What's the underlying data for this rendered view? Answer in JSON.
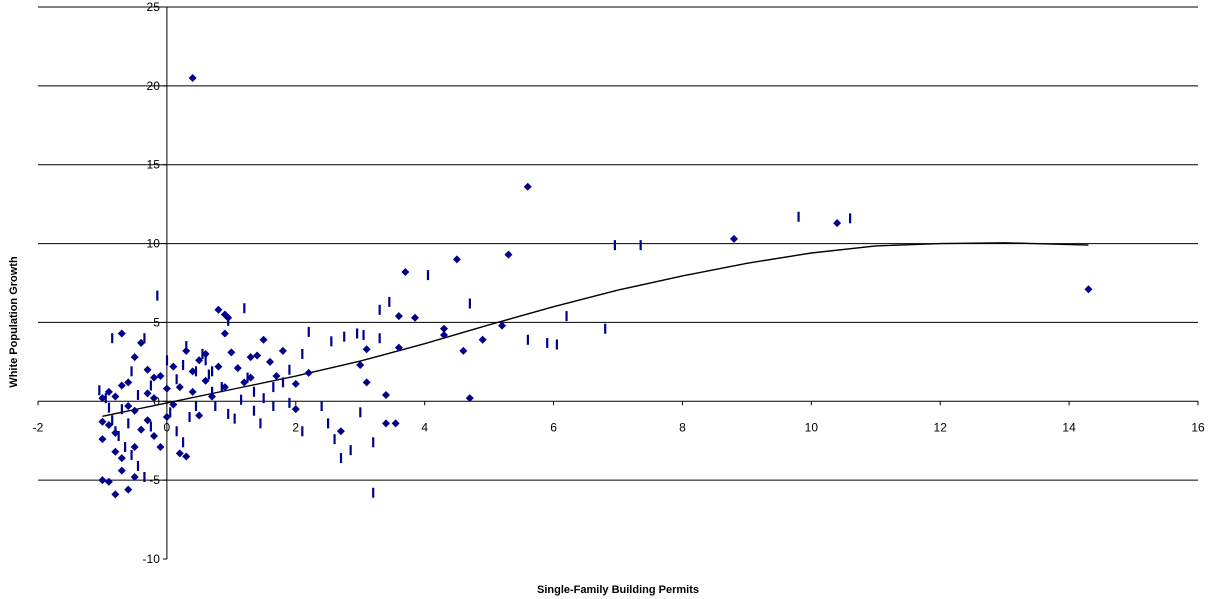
{
  "chart_data": {
    "type": "scatter",
    "title": "",
    "xlabel": "Single-Family Building Permits",
    "ylabel": "White Population Growth",
    "xlim": [
      -2,
      16
    ],
    "ylim": [
      -10,
      25
    ],
    "x_ticks": [
      -2,
      0,
      2,
      4,
      6,
      8,
      10,
      12,
      14,
      16
    ],
    "x_tick_labels": [
      "-2",
      "0",
      "2",
      "4",
      "6",
      "8",
      "10",
      "12",
      "14",
      "16"
    ],
    "y_ticks": [
      -10,
      -5,
      0,
      5,
      10,
      15,
      20,
      25
    ],
    "y_tick_labels": [
      "-10",
      "-5",
      "0",
      "5",
      "10",
      "15",
      "20",
      "25"
    ],
    "grid": {
      "horizontal": true,
      "vertical": false
    },
    "legend": "none",
    "colors": {
      "diamond_series": "#00008b",
      "dash_series": "#00008b",
      "trendline": "#000000",
      "gridlines": "#000000"
    },
    "series": [
      {
        "marker": "diamond",
        "points": [
          [
            0.4,
            20.5
          ],
          [
            5.6,
            13.6
          ],
          [
            10.4,
            11.3
          ],
          [
            8.8,
            10.3
          ],
          [
            14.3,
            7.1
          ],
          [
            4.5,
            9.0
          ],
          [
            5.3,
            9.3
          ],
          [
            3.7,
            8.2
          ],
          [
            3.6,
            5.4
          ],
          [
            3.85,
            5.3
          ],
          [
            0.8,
            5.8
          ],
          [
            0.9,
            5.5
          ],
          [
            0.95,
            5.3
          ],
          [
            4.3,
            4.6
          ],
          [
            4.3,
            4.2
          ],
          [
            5.2,
            4.8
          ],
          [
            4.9,
            3.9
          ],
          [
            4.6,
            3.2
          ],
          [
            3.6,
            3.4
          ],
          [
            3.1,
            3.3
          ],
          [
            3.0,
            2.3
          ],
          [
            3.1,
            1.2
          ],
          [
            3.4,
            0.4
          ],
          [
            3.4,
            -1.4
          ],
          [
            3.55,
            -1.4
          ],
          [
            4.7,
            0.2
          ],
          [
            2.0,
            -0.5
          ],
          [
            2.2,
            1.8
          ],
          [
            2.7,
            -1.9
          ],
          [
            1.8,
            3.2
          ],
          [
            1.6,
            2.5
          ],
          [
            1.5,
            3.9
          ],
          [
            1.4,
            2.9
          ],
          [
            1.2,
            1.2
          ],
          [
            1.0,
            3.1
          ],
          [
            0.9,
            4.3
          ],
          [
            0.6,
            3.0
          ],
          [
            0.5,
            2.6
          ],
          [
            0.4,
            1.9
          ],
          [
            0.3,
            3.2
          ],
          [
            0.1,
            2.2
          ],
          [
            0.0,
            0.8
          ],
          [
            -0.2,
            1.5
          ],
          [
            -0.3,
            0.5
          ],
          [
            -0.5,
            -0.6
          ],
          [
            -0.7,
            4.3
          ],
          [
            -0.5,
            2.8
          ],
          [
            -0.4,
            3.7
          ],
          [
            -0.6,
            1.2
          ],
          [
            -0.8,
            0.3
          ],
          [
            -0.9,
            -1.5
          ],
          [
            -1.0,
            -2.4
          ],
          [
            -0.8,
            -3.2
          ],
          [
            -0.7,
            -4.4
          ],
          [
            -0.9,
            -5.1
          ],
          [
            -0.6,
            -5.6
          ],
          [
            -0.8,
            -5.9
          ],
          [
            -1.0,
            -5.0
          ],
          [
            -0.5,
            -2.9
          ],
          [
            -0.3,
            -1.2
          ],
          [
            -0.1,
            -2.9
          ],
          [
            0.2,
            -3.3
          ],
          [
            0.3,
            -3.5
          ],
          [
            -0.2,
            0.2
          ],
          [
            0.1,
            -0.2
          ],
          [
            0.7,
            0.3
          ],
          [
            0.5,
            -0.9
          ],
          [
            1.1,
            2.1
          ],
          [
            1.3,
            1.5
          ],
          [
            1.7,
            1.6
          ],
          [
            2.0,
            1.1
          ],
          [
            0.6,
            1.3
          ],
          [
            0.8,
            2.2
          ],
          [
            0.2,
            0.9
          ],
          [
            -0.3,
            2.0
          ],
          [
            -0.7,
            1.0
          ],
          [
            -0.9,
            0.6
          ],
          [
            -1.0,
            0.2
          ],
          [
            -0.6,
            -0.3
          ],
          [
            -0.4,
            -1.8
          ],
          [
            -0.8,
            -2.0
          ],
          [
            -1.0,
            -1.3
          ],
          [
            -0.7,
            -3.6
          ],
          [
            -0.5,
            -4.8
          ],
          [
            0.0,
            -1.0
          ],
          [
            -0.2,
            -2.2
          ],
          [
            -0.1,
            1.6
          ],
          [
            0.4,
            0.6
          ],
          [
            1.3,
            2.8
          ],
          [
            0.9,
            0.9
          ]
        ]
      },
      {
        "marker": "dash",
        "points": [
          [
            9.8,
            11.7
          ],
          [
            10.6,
            11.6
          ],
          [
            6.95,
            9.9
          ],
          [
            7.35,
            9.9
          ],
          [
            6.2,
            5.4
          ],
          [
            6.8,
            4.6
          ],
          [
            5.6,
            3.9
          ],
          [
            5.9,
            3.7
          ],
          [
            6.05,
            3.6
          ],
          [
            4.05,
            8.0
          ],
          [
            4.7,
            6.2
          ],
          [
            3.45,
            6.3
          ],
          [
            3.3,
            5.8
          ],
          [
            3.3,
            4.0
          ],
          [
            3.05,
            4.2
          ],
          [
            2.95,
            4.3
          ],
          [
            2.75,
            4.1
          ],
          [
            2.55,
            3.8
          ],
          [
            2.2,
            4.4
          ],
          [
            2.1,
            3.0
          ],
          [
            1.9,
            2.0
          ],
          [
            1.8,
            1.2
          ],
          [
            1.65,
            0.9
          ],
          [
            1.5,
            0.2
          ],
          [
            1.35,
            0.6
          ],
          [
            1.25,
            1.5
          ],
          [
            1.2,
            5.9
          ],
          [
            0.95,
            5.1
          ],
          [
            0.3,
            3.5
          ],
          [
            0.55,
            3.0
          ],
          [
            0.25,
            2.3
          ],
          [
            0.45,
            1.9
          ],
          [
            0.65,
            1.7
          ],
          [
            0.7,
            0.6
          ],
          [
            0.95,
            -0.8
          ],
          [
            1.05,
            -1.1
          ],
          [
            1.35,
            -0.6
          ],
          [
            1.65,
            -0.3
          ],
          [
            1.9,
            -0.1
          ],
          [
            2.4,
            -0.3
          ],
          [
            2.5,
            -1.4
          ],
          [
            2.6,
            -2.4
          ],
          [
            2.7,
            -3.6
          ],
          [
            2.85,
            -3.1
          ],
          [
            3.0,
            -0.7
          ],
          [
            3.2,
            -2.6
          ],
          [
            3.2,
            -5.8
          ],
          [
            -0.15,
            6.7
          ],
          [
            -0.35,
            4.0
          ],
          [
            -0.85,
            4.0
          ],
          [
            -1.05,
            0.7
          ],
          [
            -0.95,
            0.2
          ],
          [
            -0.9,
            -0.4
          ],
          [
            -0.85,
            -1.2
          ],
          [
            -0.75,
            -2.2
          ],
          [
            -0.65,
            -2.9
          ],
          [
            -0.55,
            -3.4
          ],
          [
            -0.45,
            -4.1
          ],
          [
            -0.35,
            -4.8
          ],
          [
            -0.25,
            -1.6
          ],
          [
            0.05,
            -0.7
          ],
          [
            0.15,
            -1.9
          ],
          [
            0.25,
            -2.6
          ],
          [
            0.35,
            -1.0
          ],
          [
            0.45,
            -0.3
          ],
          [
            0.85,
            0.9
          ],
          [
            0.75,
            -0.3
          ],
          [
            1.15,
            0.1
          ],
          [
            1.45,
            -1.4
          ],
          [
            2.1,
            -1.9
          ],
          [
            -0.25,
            1.0
          ],
          [
            -0.45,
            0.4
          ],
          [
            -0.55,
            1.9
          ],
          [
            -0.7,
            -0.5
          ],
          [
            -0.8,
            -1.9
          ],
          [
            -0.6,
            -1.4
          ],
          [
            0.0,
            2.6
          ],
          [
            0.15,
            1.4
          ],
          [
            0.6,
            2.6
          ],
          [
            0.7,
            1.9
          ]
        ]
      }
    ],
    "trendline": {
      "points": [
        [
          -1.0,
          -0.95
        ],
        [
          0.0,
          -0.1
        ],
        [
          1.0,
          0.75
        ],
        [
          2.0,
          1.6
        ],
        [
          3.0,
          2.55
        ],
        [
          4.0,
          3.65
        ],
        [
          5.0,
          4.85
        ],
        [
          6.0,
          6.0
        ],
        [
          7.0,
          7.05
        ],
        [
          8.0,
          7.95
        ],
        [
          9.0,
          8.75
        ],
        [
          10.0,
          9.4
        ],
        [
          11.0,
          9.85
        ],
        [
          12.0,
          10.0
        ],
        [
          13.0,
          10.05
        ],
        [
          14.3,
          9.9
        ]
      ]
    }
  }
}
